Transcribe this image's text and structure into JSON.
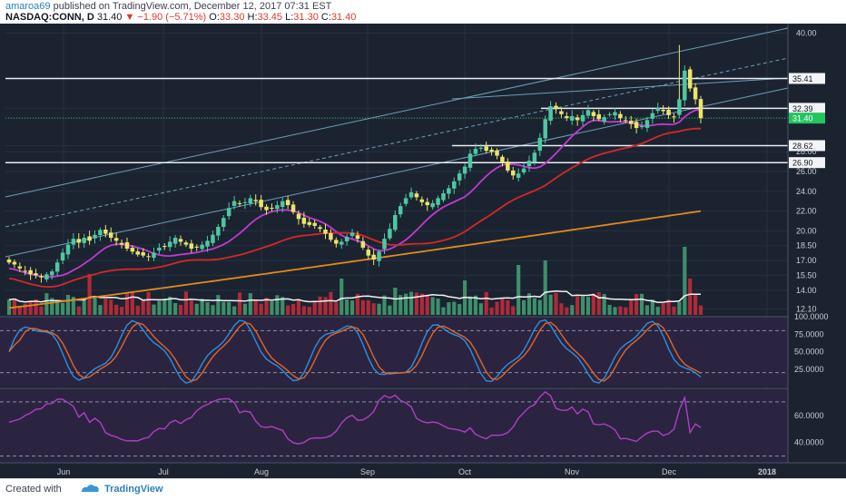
{
  "header": {
    "author": "amaroa69",
    "published_text": "published on TradingView.com, December 12, 2017 07:31 EST",
    "symbol": "NASDAQ:CONN, D",
    "price": "31.40",
    "change_arrow": "▼",
    "change": "−1.90 (−5.71%)",
    "o_label": "O:",
    "o_value": "33.30",
    "h_label": "H:",
    "h_value": "33.45",
    "l_label": "L:",
    "l_value": "31.30",
    "c_label": "C:",
    "c_value": "31.40"
  },
  "footer": {
    "created_with": "Created with",
    "brand": "TradingView"
  },
  "colors": {
    "background": "#1b2330",
    "up_candle": "#4fc7a3",
    "down_candle": "#ece46c",
    "ma_fast": "#c13ad1",
    "ma_mid": "#d62728",
    "ma_slow": "#e08a1e",
    "channel": "#6b9fb8",
    "stoch_k": "#2f8fdc",
    "stoch_d": "#e0652a",
    "rsi": "#b03ec7",
    "volume_up": "#3e8f6a",
    "volume_down": "#b02a3a"
  },
  "chart_data": {
    "type": "candlestick",
    "symbol": "NASDAQ:CONN",
    "interval": "D",
    "x_labels": [
      "Jun",
      "Jul",
      "Aug",
      "Sep",
      "Oct",
      "Nov",
      "Dec",
      "2018"
    ],
    "price_axis": {
      "ticks": [
        "40.00",
        "35.41",
        "32.39",
        "31.40",
        "28.62",
        "28.00",
        "26.90",
        "26.00",
        "24.00",
        "22.00",
        "20.00",
        "18.50",
        "17.00",
        "15.50",
        "14.00",
        "12.10"
      ],
      "range": [
        11.5,
        40.5
      ]
    },
    "horizontal_levels": [
      35.41,
      32.39,
      28.62,
      26.9
    ],
    "last_price": 31.4,
    "closes": [
      16.8,
      16.6,
      16.2,
      15.9,
      15.6,
      15.5,
      15.3,
      15.6,
      15.9,
      16.8,
      17.8,
      18.6,
      19.2,
      18.8,
      19.3,
      19.0,
      19.6,
      20.1,
      19.7,
      19.3,
      19.0,
      18.6,
      18.2,
      17.9,
      17.6,
      17.5,
      17.4,
      17.8,
      18.3,
      18.4,
      18.9,
      19.3,
      18.9,
      18.6,
      18.2,
      18.3,
      18.6,
      19.0,
      19.6,
      20.4,
      21.3,
      22.3,
      23.0,
      22.7,
      22.9,
      23.3,
      23.0,
      22.4,
      22.1,
      22.3,
      22.6,
      23.0,
      22.6,
      21.9,
      21.2,
      20.7,
      20.6,
      20.5,
      20.2,
      19.7,
      19.1,
      18.7,
      18.9,
      19.4,
      19.8,
      19.2,
      18.3,
      17.5,
      17.1,
      17.9,
      19.2,
      20.2,
      21.6,
      22.5,
      23.3,
      23.9,
      23.4,
      22.9,
      22.6,
      22.8,
      23.3,
      23.8,
      24.3,
      25.0,
      25.8,
      26.5,
      27.8,
      28.3,
      28.4,
      28.1,
      28.0,
      27.6,
      26.9,
      26.1,
      25.6,
      25.8,
      26.3,
      27.1,
      27.9,
      29.4,
      31.3,
      32.6,
      32.3,
      31.8,
      31.4,
      31.6,
      31.2,
      31.7,
      32.2,
      31.6,
      31.3,
      31.5,
      31.8,
      32.0,
      31.4,
      31.1,
      30.8,
      30.4,
      30.6,
      31.2,
      31.9,
      32.4,
      32.1,
      31.7,
      31.5,
      33.3,
      36.2,
      34.4,
      33.3,
      31.4
    ],
    "ma20": "magenta series, rising from ~15.5 to ~31",
    "ma50": "red series, rising from ~14.5 to ~28.8",
    "ma200": "orange series, rising from ~12.2 to ~22",
    "volume_note": "histogram with white moving-average line",
    "stochastic": {
      "ticks": [
        "100.0000",
        "75.0000",
        "50.0000",
        "25.0000"
      ],
      "bands": [
        80,
        20
      ],
      "series": [
        "%K",
        "%D"
      ]
    },
    "rsi": {
      "ticks": [
        "60.0000",
        "40.0000"
      ],
      "bands": [
        70,
        30
      ]
    }
  }
}
